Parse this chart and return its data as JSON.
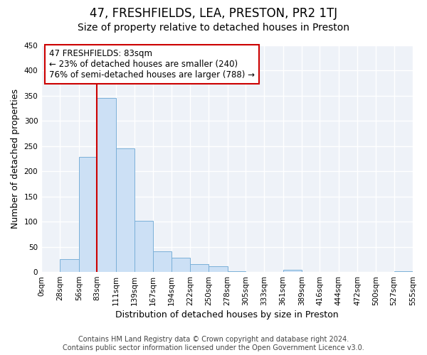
{
  "title": "47, FRESHFIELDS, LEA, PRESTON, PR2 1TJ",
  "subtitle": "Size of property relative to detached houses in Preston",
  "xlabel": "Distribution of detached houses by size in Preston",
  "ylabel": "Number of detached properties",
  "bar_values": [
    0,
    25,
    228,
    345,
    246,
    102,
    41,
    29,
    16,
    11,
    2,
    0,
    0,
    5,
    0,
    0,
    0,
    0,
    0,
    2
  ],
  "bin_edges": [
    0,
    28,
    56,
    83,
    111,
    139,
    167,
    194,
    222,
    250,
    278,
    305,
    333,
    361,
    389,
    416,
    444,
    472,
    500,
    527,
    555
  ],
  "tick_labels": [
    "0sqm",
    "28sqm",
    "56sqm",
    "83sqm",
    "111sqm",
    "139sqm",
    "167sqm",
    "194sqm",
    "222sqm",
    "250sqm",
    "278sqm",
    "305sqm",
    "333sqm",
    "361sqm",
    "389sqm",
    "416sqm",
    "444sqm",
    "472sqm",
    "500sqm",
    "527sqm",
    "555sqm"
  ],
  "bar_color": "#cce0f5",
  "bar_edge_color": "#7ab0d8",
  "grid_color": "#d0d8e8",
  "vline_x": 83,
  "vline_color": "#cc0000",
  "annotation_line1": "47 FRESHFIELDS: 83sqm",
  "annotation_line2": "← 23% of detached houses are smaller (240)",
  "annotation_line3": "76% of semi-detached houses are larger (788) →",
  "box_edge_color": "#cc0000",
  "ylim": [
    0,
    450
  ],
  "yticks": [
    0,
    50,
    100,
    150,
    200,
    250,
    300,
    350,
    400,
    450
  ],
  "footer_line1": "Contains HM Land Registry data © Crown copyright and database right 2024.",
  "footer_line2": "Contains public sector information licensed under the Open Government Licence v3.0.",
  "title_fontsize": 12,
  "subtitle_fontsize": 10,
  "axis_label_fontsize": 9,
  "tick_fontsize": 7.5,
  "footer_fontsize": 7,
  "annotation_fontsize": 8.5
}
